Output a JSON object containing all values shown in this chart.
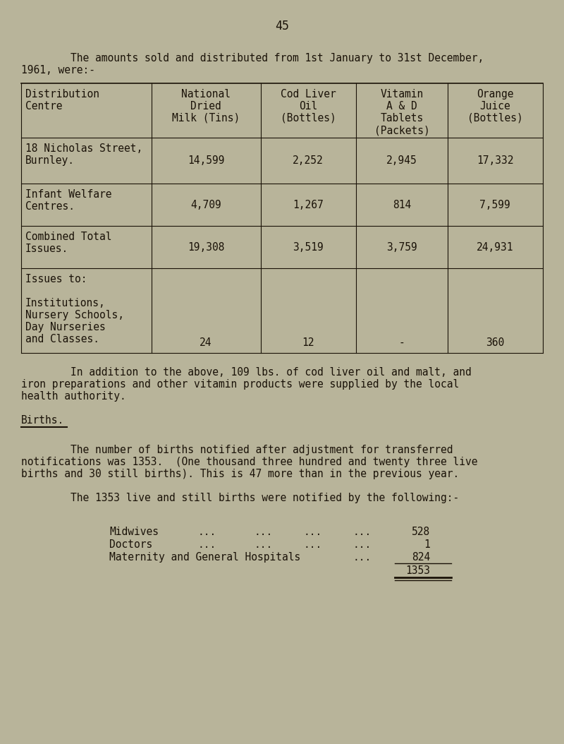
{
  "page_number": "45",
  "bg_color": "#b8b49a",
  "text_color": "#1a1208",
  "intro_line1": "        The amounts sold and distributed from 1st January to 31st December,",
  "intro_line2": "1961, were:-",
  "table_headers_col0": [
    "Distribution",
    "Centre"
  ],
  "table_headers_col1": [
    "National",
    "Dried",
    "Milk (Tins)"
  ],
  "table_headers_col2": [
    "Cod Liver",
    "Oil",
    "(Bottles)"
  ],
  "table_headers_col3": [
    "Vitamin",
    "A & D",
    "Tablets",
    "(Packets)"
  ],
  "table_headers_col4": [
    "Orange",
    "Juice",
    "(Bottles)"
  ],
  "row0_label": [
    "18 Nicholas Street,",
    "Burnley."
  ],
  "row0_vals": [
    "14,599",
    "2,252",
    "2,945",
    "17,332"
  ],
  "row1_label": [
    "Infant Welfare",
    "Centres."
  ],
  "row1_vals": [
    "4,709",
    "1,267",
    "814",
    "7,599"
  ],
  "row2_label": [
    "Combined Total",
    "Issues."
  ],
  "row2_vals": [
    "19,308",
    "3,519",
    "3,759",
    "24,931"
  ],
  "row3_label": [
    "Issues to:",
    "",
    "Institutions,",
    "Nursery Schools,",
    "Day Nurseries",
    "and Classes."
  ],
  "row3_vals": [
    "24",
    "12",
    "-",
    "360"
  ],
  "addition_line1": "        In addition to the above, 109 lbs. of cod liver oil and malt, and",
  "addition_line2": "iron preparations and other vitamin products were supplied by the local",
  "addition_line3": "health authority.",
  "births_heading": "Births.",
  "births_p1_l1": "        The number of births notified after adjustment for transferred",
  "births_p1_l2": "notifications was 1353.  (One thousand three hundred and twenty three live",
  "births_p1_l3": "births and 30 still births). This is 47 more than in the previous year.",
  "births_p2": "        The 1353 live and still births were notified by the following:-",
  "midwives_label": "Midwives",
  "midwives_dots": "...       ...       ...      ...",
  "midwives_val": "528",
  "doctors_label": "Doctors",
  "doctors_dots": "...       ...       ...      ...",
  "doctors_val": "1",
  "maternity_label": "Maternity and General Hospitals",
  "maternity_dots": "...",
  "maternity_val": "824",
  "total_val": "1353",
  "font_size": 10.5
}
